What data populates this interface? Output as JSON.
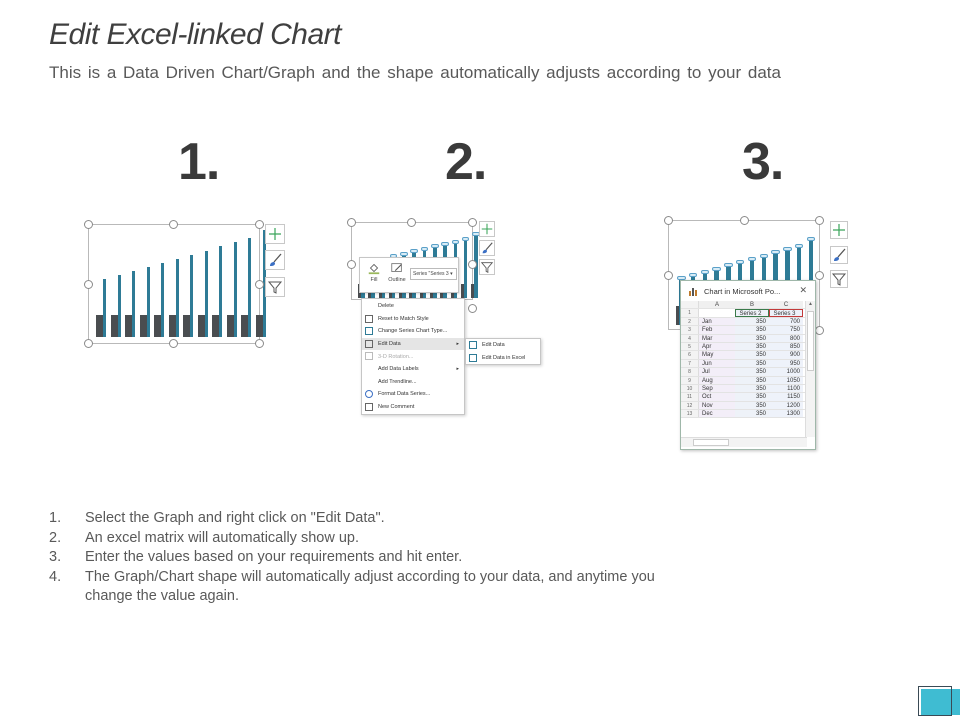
{
  "header": {
    "title": "Edit Excel-linked Chart",
    "subtitle": "This is a Data Driven Chart/Graph and the shape automatically adjusts according to your data"
  },
  "steps": [
    {
      "number": "1."
    },
    {
      "number": "2."
    },
    {
      "number": "3."
    }
  ],
  "chart_buttons": {
    "add_element": "plus-icon",
    "chart_styles": "brush-icon",
    "chart_filters": "filter-icon"
  },
  "context_toolbar": {
    "fill_label": "Fill",
    "outline_label": "Outline",
    "series_select": "Series \"Series 3"
  },
  "context_menu": {
    "items": [
      {
        "label": "Delete"
      },
      {
        "label": "Reset to Match Style"
      },
      {
        "label": "Change Series Chart Type..."
      },
      {
        "label": "Edit Data"
      },
      {
        "label": "3-D Rotation..."
      },
      {
        "label": "Add Data Labels"
      },
      {
        "label": "Add Trendline..."
      },
      {
        "label": "Format Data Series..."
      },
      {
        "label": "New Comment"
      }
    ],
    "submenu": [
      {
        "label": "Edit Data"
      },
      {
        "label": "Edit Data in Excel"
      }
    ]
  },
  "excel_window": {
    "title": "Chart in Microsoft Po...",
    "close": "✕",
    "columns": [
      "A",
      "B",
      "C"
    ],
    "header_row": {
      "row": "1",
      "a": "",
      "b": "Series 2",
      "c": "Series 3"
    },
    "rows": [
      {
        "row": "2",
        "a": "Jan",
        "b": "350",
        "c": "700"
      },
      {
        "row": "3",
        "a": "Feb",
        "b": "350",
        "c": "750"
      },
      {
        "row": "4",
        "a": "Mar",
        "b": "350",
        "c": "800"
      },
      {
        "row": "5",
        "a": "Apr",
        "b": "350",
        "c": "850"
      },
      {
        "row": "6",
        "a": "May",
        "b": "350",
        "c": "900"
      },
      {
        "row": "7",
        "a": "Jun",
        "b": "350",
        "c": "950"
      },
      {
        "row": "8",
        "a": "Jul",
        "b": "350",
        "c": "1000"
      },
      {
        "row": "9",
        "a": "Aug",
        "b": "350",
        "c": "1050"
      },
      {
        "row": "10",
        "a": "Sep",
        "b": "350",
        "c": "1100"
      },
      {
        "row": "11",
        "a": "Oct",
        "b": "350",
        "c": "1150"
      },
      {
        "row": "12",
        "a": "Nov",
        "b": "350",
        "c": "1200"
      },
      {
        "row": "13",
        "a": "Dec",
        "b": "350",
        "c": "1300"
      }
    ]
  },
  "chart_values": {
    "categories": [
      "Jan",
      "Feb",
      "Mar",
      "Apr",
      "May",
      "Jun",
      "Jul",
      "Aug",
      "Sep",
      "Oct",
      "Nov",
      "Dec"
    ],
    "series2": [
      350,
      350,
      350,
      350,
      350,
      350,
      350,
      350,
      350,
      350,
      350,
      350
    ],
    "series3": [
      700,
      750,
      800,
      850,
      900,
      950,
      1000,
      1050,
      1100,
      1150,
      1200,
      1300
    ]
  },
  "instructions": [
    {
      "num": "1.",
      "text": "Select the Graph and right click on \"Edit Data\"."
    },
    {
      "num": "2.",
      "text": "An excel matrix will automatically show up."
    },
    {
      "num": "3.",
      "text": "Enter the values based on your requirements and hit enter."
    },
    {
      "num": "4.",
      "text": "The Graph/Chart shape will automatically adjust according to your data, and anytime you change the value again."
    }
  ],
  "colors": {
    "series_dark": "#4a4d50",
    "series_teal": "#2e7b96",
    "accent_corner": "#3fbcd2"
  }
}
